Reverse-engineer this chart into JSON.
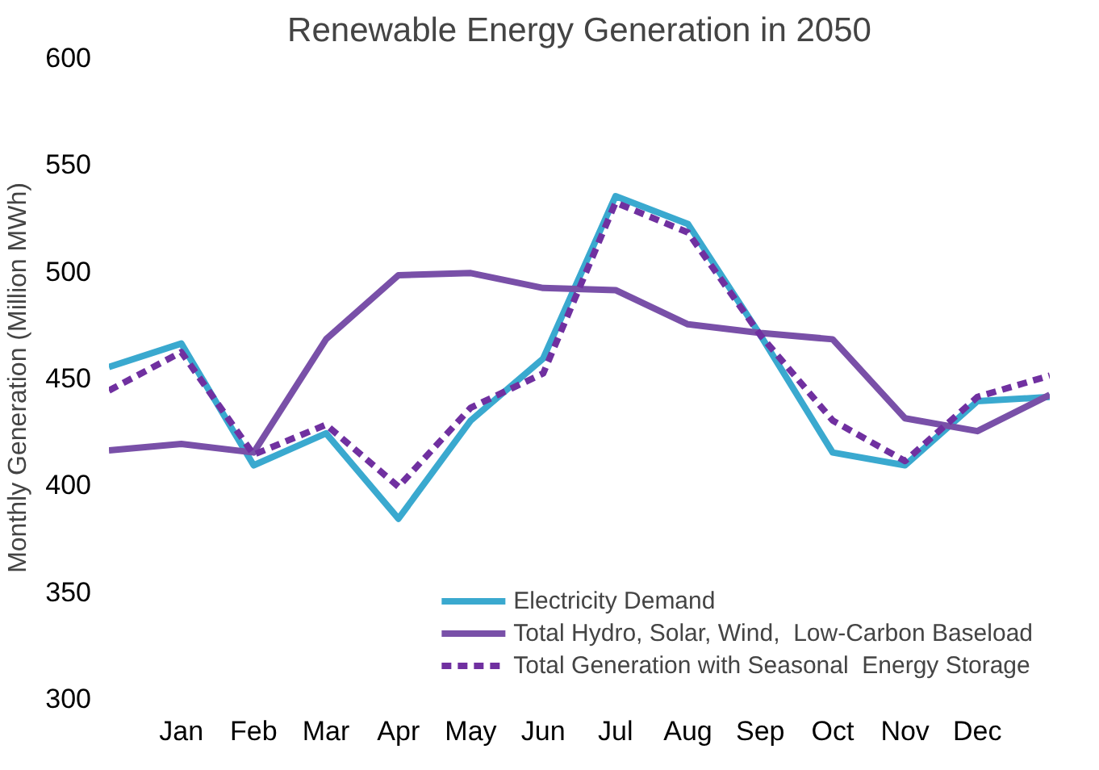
{
  "chart_data": {
    "type": "line",
    "title": "Renewable Energy Generation in 2050",
    "ylabel": "Monthly Generation (Million MWh)",
    "categories": [
      null,
      "Jan",
      "Feb",
      "Mar",
      "Apr",
      "May",
      "Jun",
      "Jul",
      "Aug",
      "Sep",
      "Oct",
      "Nov",
      "Dec",
      null
    ],
    "ylim": [
      300,
      600
    ],
    "yticks": [
      300,
      350,
      400,
      450,
      500,
      550,
      600
    ],
    "series": [
      {
        "name": "Electricity Demand",
        "color": "#3aa9cf",
        "line_style": "solid",
        "values": [
          455,
          466,
          409,
          424,
          384,
          430,
          459,
          535,
          522,
          470,
          415,
          409,
          439,
          441
        ]
      },
      {
        "name": "Total Hydro, Solar, Wind,  Low-Carbon Baseload",
        "color": "#7950a8",
        "line_style": "solid",
        "values": [
          416,
          419,
          415,
          468,
          498,
          499,
          492,
          491,
          475,
          471,
          468,
          431,
          425,
          442
        ]
      },
      {
        "name": "Total Generation with Seasonal  Energy Storage",
        "color": "#7030a0",
        "line_style": "dashed",
        "values": [
          444,
          462,
          414,
          428,
          399,
          436,
          452,
          532,
          518,
          470,
          430,
          411,
          441,
          451
        ]
      }
    ],
    "legend": "bottom right",
    "grid": false
  }
}
